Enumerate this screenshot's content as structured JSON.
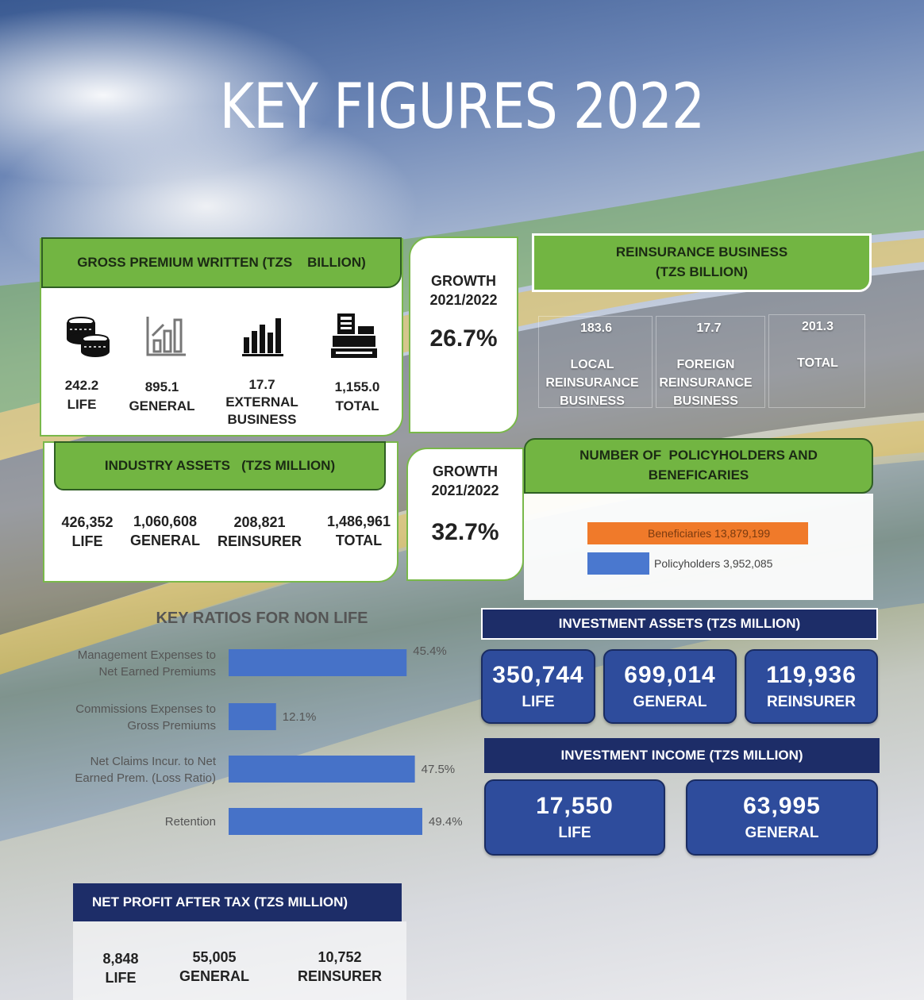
{
  "title": "KEY FIGURES 2022",
  "gross_premium": {
    "header": "GROSS PREMIUM WRITTEN (TZS    BILLION)",
    "items": [
      {
        "value": "242.2",
        "label": "LIFE",
        "icon": "coins-icon"
      },
      {
        "value": "895.1",
        "label": "GENERAL",
        "icon": "bar-chart-icon"
      },
      {
        "value": "17.7",
        "label": "EXTERNAL BUSINESS",
        "icon": "growth-chart-icon"
      },
      {
        "value": "1,155.0",
        "label": "TOTAL",
        "icon": "cash-register-icon"
      }
    ]
  },
  "growth_premium": {
    "label_line1": "GROWTH",
    "label_line2": "2021/2022",
    "value": "26.7%"
  },
  "reinsurance_business": {
    "header_line1": "REINSURANCE BUSINESS",
    "header_line2": "(TZS BILLION)",
    "items": [
      {
        "value": "183.6",
        "label_lines": [
          "LOCAL",
          "REINSURANCE",
          "BUSINESS"
        ]
      },
      {
        "value": "17.7",
        "label_lines": [
          "FOREIGN",
          "REINSURANCE",
          "BUSINESS"
        ]
      },
      {
        "value": "201.3",
        "label_lines": [
          "TOTAL"
        ]
      }
    ]
  },
  "industry_assets": {
    "header": "INDUSTRY ASSETS   (TZS MILLION)",
    "items": [
      {
        "value": "426,352",
        "label": "LIFE"
      },
      {
        "value": "1,060,608",
        "label": "GENERAL"
      },
      {
        "value": "208,821",
        "label": "REINSURER"
      },
      {
        "value": "1,486,961",
        "label": "TOTAL"
      }
    ]
  },
  "growth_assets": {
    "label_line1": "GROWTH",
    "label_line2": "2021/2022",
    "value": "32.7%"
  },
  "policyholders": {
    "header_line1": "NUMBER OF  POLICYHOLDERS AND",
    "header_line2": "BENEFICARIES",
    "chart_data": {
      "type": "bar",
      "orientation": "horizontal",
      "categories": [
        "Beneficiaries",
        "Policyholders"
      ],
      "values": [
        13879199,
        3952085
      ],
      "value_labels": [
        "13,879,199",
        "3,952,085"
      ],
      "colors": [
        "#f07a2a",
        "#4a78cf"
      ]
    }
  },
  "key_ratios": {
    "title": "KEY RATIOS FOR NON LIFE",
    "chart_data": {
      "type": "bar",
      "orientation": "horizontal",
      "categories": [
        [
          "Management Expenses to",
          "Net Earned Premiums"
        ],
        [
          "Commissions Expenses to",
          "Gross Premiums"
        ],
        [
          "Net Claims Incur. to Net",
          "Earned Prem. (Loss Ratio)"
        ],
        [
          "Retention"
        ]
      ],
      "values": [
        45.4,
        12.1,
        47.5,
        49.4
      ],
      "value_labels": [
        "45.4%",
        "12.1%",
        "47.5%",
        "49.4%"
      ],
      "color": "#4672c8"
    }
  },
  "investment_assets": {
    "header": "INVESTMENT ASSETS (TZS MILLION)",
    "items": [
      {
        "value": "350,744",
        "label": "LIFE"
      },
      {
        "value": "699,014",
        "label": "GENERAL"
      },
      {
        "value": "119,936",
        "label": "REINSURER"
      }
    ]
  },
  "investment_income": {
    "header": "INVESTMENT INCOME (TZS MILLION)",
    "items": [
      {
        "value": "17,550",
        "label": "LIFE"
      },
      {
        "value": "63,995",
        "label": "GENERAL"
      }
    ]
  },
  "net_profit": {
    "header": "NET PROFIT AFTER TAX (TZS MILLION)",
    "items": [
      {
        "value": "8,848",
        "label": "LIFE"
      },
      {
        "value": "55,005",
        "label": "GENERAL"
      },
      {
        "value": "10,752",
        "label": "REINSURER"
      }
    ]
  }
}
